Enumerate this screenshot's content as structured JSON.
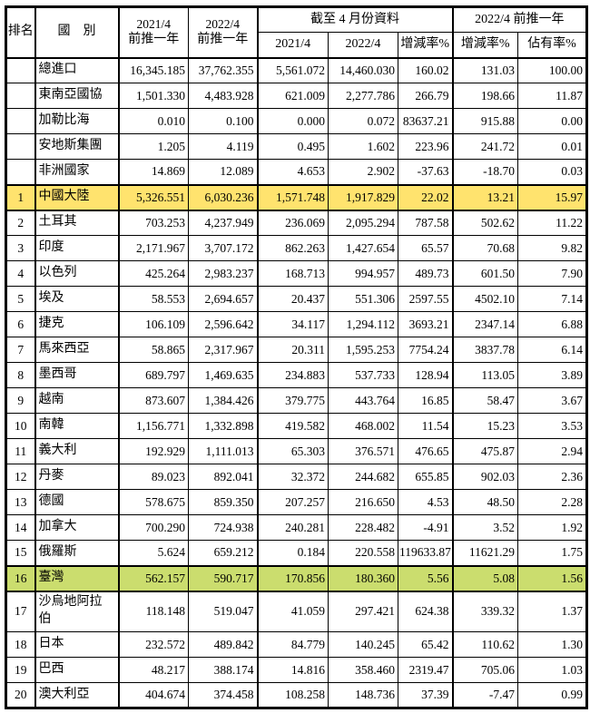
{
  "table": {
    "colors": {
      "border": "#000000",
      "text": "#000000",
      "highlight_yellow": "#FFE36E",
      "highlight_green": "#CBDD6E"
    },
    "header": {
      "rank_label": "排名",
      "country_label": "國　別",
      "col_2021_prev_line1": "2021/4",
      "col_2021_prev_line2": "前推一年",
      "col_2022_prev_line1": "2022/4",
      "col_2022_prev_line2": "前推一年",
      "group_april_label": "截至 4 月份資料",
      "group_2022_prev_label": "2022/4 前推一年",
      "sub_2021_label": "2021/4",
      "sub_2022_label": "2022/4",
      "sub_change_april_label": "增減率%",
      "sub_change_prev_label": "增減率%",
      "sub_share_label": "佔有率%"
    },
    "rows": [
      {
        "rank": "",
        "name": "總進口",
        "values": [
          "16,345.185",
          "37,762.355",
          "5,561.072",
          "14,460.030",
          "160.02",
          "131.03",
          "100.00"
        ],
        "highlight": "none",
        "tall": false
      },
      {
        "rank": "",
        "name": "東南亞國協",
        "values": [
          "1,501.330",
          "4,483.928",
          "621.009",
          "2,277.786",
          "266.79",
          "198.66",
          "11.87"
        ],
        "highlight": "none",
        "tall": false
      },
      {
        "rank": "",
        "name": "加勒比海",
        "values": [
          "0.010",
          "0.100",
          "0.000",
          "0.072",
          "83637.21",
          "915.88",
          "0.00"
        ],
        "highlight": "none",
        "tall": false
      },
      {
        "rank": "",
        "name": "安地斯集團",
        "values": [
          "1.205",
          "4.119",
          "0.495",
          "1.602",
          "223.96",
          "241.72",
          "0.01"
        ],
        "highlight": "none",
        "tall": false
      },
      {
        "rank": "",
        "name": "非洲國家",
        "values": [
          "14.869",
          "12.089",
          "4.653",
          "2.902",
          "-37.63",
          "-18.70",
          "0.03"
        ],
        "highlight": "none",
        "tall": false
      },
      {
        "rank": "1",
        "name": "中國大陸",
        "values": [
          "5,326.551",
          "6,030.236",
          "1,571.748",
          "1,917.829",
          "22.02",
          "13.21",
          "15.97"
        ],
        "highlight": "yellow",
        "tall": false
      },
      {
        "rank": "2",
        "name": "土耳其",
        "values": [
          "703.253",
          "4,237.949",
          "236.069",
          "2,095.294",
          "787.58",
          "502.62",
          "11.22"
        ],
        "highlight": "none",
        "tall": false
      },
      {
        "rank": "3",
        "name": "印度",
        "values": [
          "2,171.967",
          "3,707.172",
          "862.263",
          "1,427.654",
          "65.57",
          "70.68",
          "9.82"
        ],
        "highlight": "none",
        "tall": false
      },
      {
        "rank": "4",
        "name": "以色列",
        "values": [
          "425.264",
          "2,983.237",
          "168.713",
          "994.957",
          "489.73",
          "601.50",
          "7.90"
        ],
        "highlight": "none",
        "tall": false
      },
      {
        "rank": "5",
        "name": "埃及",
        "values": [
          "58.553",
          "2,694.657",
          "20.437",
          "551.306",
          "2597.55",
          "4502.10",
          "7.14"
        ],
        "highlight": "none",
        "tall": false
      },
      {
        "rank": "6",
        "name": "捷克",
        "values": [
          "106.109",
          "2,596.642",
          "34.117",
          "1,294.112",
          "3693.21",
          "2347.14",
          "6.88"
        ],
        "highlight": "none",
        "tall": false
      },
      {
        "rank": "7",
        "name": "馬來西亞",
        "values": [
          "58.865",
          "2,317.967",
          "20.311",
          "1,595.253",
          "7754.24",
          "3837.78",
          "6.14"
        ],
        "highlight": "none",
        "tall": false
      },
      {
        "rank": "8",
        "name": "墨西哥",
        "values": [
          "689.797",
          "1,469.635",
          "234.883",
          "537.733",
          "128.94",
          "113.05",
          "3.89"
        ],
        "highlight": "none",
        "tall": false
      },
      {
        "rank": "9",
        "name": "越南",
        "values": [
          "873.607",
          "1,384.426",
          "379.775",
          "443.764",
          "16.85",
          "58.47",
          "3.67"
        ],
        "highlight": "none",
        "tall": false
      },
      {
        "rank": "10",
        "name": "南韓",
        "values": [
          "1,156.771",
          "1,332.898",
          "419.582",
          "468.002",
          "11.54",
          "15.23",
          "3.53"
        ],
        "highlight": "none",
        "tall": false
      },
      {
        "rank": "11",
        "name": "義大利",
        "values": [
          "192.929",
          "1,111.013",
          "65.303",
          "376.571",
          "476.65",
          "475.87",
          "2.94"
        ],
        "highlight": "none",
        "tall": false
      },
      {
        "rank": "12",
        "name": "丹麥",
        "values": [
          "89.023",
          "892.041",
          "32.372",
          "244.682",
          "655.85",
          "902.03",
          "2.36"
        ],
        "highlight": "none",
        "tall": false
      },
      {
        "rank": "13",
        "name": "德國",
        "values": [
          "578.675",
          "859.350",
          "207.257",
          "216.650",
          "4.53",
          "48.50",
          "2.28"
        ],
        "highlight": "none",
        "tall": false
      },
      {
        "rank": "14",
        "name": "加拿大",
        "values": [
          "700.290",
          "724.938",
          "240.281",
          "228.482",
          "-4.91",
          "3.52",
          "1.92"
        ],
        "highlight": "none",
        "tall": false
      },
      {
        "rank": "15",
        "name": "俄羅斯",
        "values": [
          "5.624",
          "659.212",
          "0.184",
          "220.558",
          "119633.87",
          "11621.29",
          "1.75"
        ],
        "highlight": "none",
        "tall": false
      },
      {
        "rank": "16",
        "name": "臺灣",
        "values": [
          "562.157",
          "590.717",
          "170.856",
          "180.360",
          "5.56",
          "5.08",
          "1.56"
        ],
        "highlight": "green",
        "tall": false
      },
      {
        "rank": "17",
        "name": "沙烏地阿拉伯",
        "values": [
          "118.148",
          "519.047",
          "41.059",
          "297.421",
          "624.38",
          "339.32",
          "1.37"
        ],
        "highlight": "none",
        "tall": true
      },
      {
        "rank": "18",
        "name": "日本",
        "values": [
          "232.572",
          "489.842",
          "84.779",
          "140.245",
          "65.42",
          "110.62",
          "1.30"
        ],
        "highlight": "none",
        "tall": false
      },
      {
        "rank": "19",
        "name": "巴西",
        "values": [
          "48.217",
          "388.174",
          "14.816",
          "358.460",
          "2319.47",
          "705.06",
          "1.03"
        ],
        "highlight": "none",
        "tall": false
      },
      {
        "rank": "20",
        "name": "澳大利亞",
        "values": [
          "404.674",
          "374.458",
          "108.258",
          "148.736",
          "37.39",
          "-7.47",
          "0.99"
        ],
        "highlight": "none",
        "tall": false
      }
    ]
  }
}
